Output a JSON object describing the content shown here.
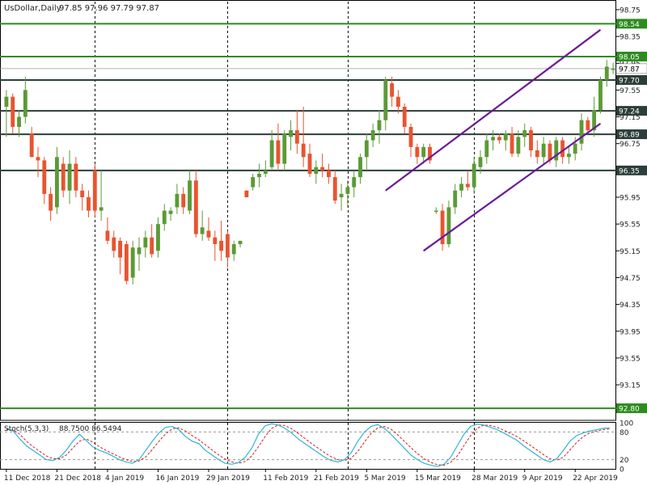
{
  "header": {
    "symbol_label": "UsDollar,Daily",
    "ohlc_text": "97.85 97.96 97.79 97.87"
  },
  "indicator": {
    "label": "Stoch(5,3,3)",
    "values_text": "88.7500 86.5494",
    "tick_labels": [
      "100",
      "80",
      "20",
      "0"
    ]
  },
  "colors": {
    "bull": "#5b9a36",
    "bear": "#e8542f",
    "support_resistance_line": "#2c3e3a",
    "green_level_line": "#2e8b20",
    "channel_line": "#6a1b9a",
    "stoch_main": "#32b4d2",
    "stoch_signal": "#d02020",
    "axis_text": "#222222",
    "grid": "#000000"
  },
  "chart_data": {
    "type": "candlestick",
    "title": "UsDollar,Daily",
    "ylim": [
      92.62,
      98.87
    ],
    "price_ticks": [
      "98.75",
      "98.35",
      "97.95",
      "97.55",
      "97.15",
      "96.75",
      "96.35",
      "95.95",
      "95.55",
      "95.15",
      "94.75",
      "94.35",
      "93.95",
      "93.55",
      "93.15"
    ],
    "x_ticks": [
      {
        "label": "11 Dec 2018",
        "index": 0
      },
      {
        "label": "21 Dec 2018",
        "index": 8
      },
      {
        "label": "4 Jan 2019",
        "index": 16
      },
      {
        "label": "16 Jan 2019",
        "index": 24
      },
      {
        "label": "29 Jan 2019",
        "index": 32
      },
      {
        "label": "11 Feb 2019",
        "index": 41
      },
      {
        "label": "21 Feb 2019",
        "index": 49
      },
      {
        "label": "5 Mar 2019",
        "index": 57
      },
      {
        "label": "15 Mar 2019",
        "index": 65
      },
      {
        "label": "28 Mar 2019",
        "index": 74
      },
      {
        "label": "9 Apr 2019",
        "index": 82
      },
      {
        "label": "22 Apr 2019",
        "index": 90
      }
    ],
    "vertical_dividers_at_index": [
      14,
      35,
      54,
      74
    ],
    "horizontal_levels": [
      {
        "value": 98.54,
        "label": "98.54",
        "color": "#2e8b20"
      },
      {
        "value": 98.05,
        "label": "98.05",
        "color": "#2e8b20"
      },
      {
        "value": 97.7,
        "label": "97.70",
        "color": "#2c3e3a"
      },
      {
        "value": 97.24,
        "label": "97.24",
        "color": "#2c3e3a"
      },
      {
        "value": 96.89,
        "label": "96.89",
        "color": "#2c3e3a"
      },
      {
        "value": 96.35,
        "label": "96.35",
        "color": "#2c3e3a"
      },
      {
        "value": 92.8,
        "label": "92.80",
        "color": "#2e8b20"
      }
    ],
    "current_price": {
      "value": 97.87,
      "label": "97.87"
    },
    "channel_lines": [
      {
        "from": {
          "index": 60,
          "price": 96.05
        },
        "to": {
          "index": 94,
          "price": 98.45
        }
      },
      {
        "from": {
          "index": 66,
          "price": 95.15
        },
        "to": {
          "index": 94,
          "price": 97.05
        }
      }
    ],
    "candles": [
      {
        "o": 97.3,
        "h": 97.55,
        "l": 96.85,
        "c": 97.45
      },
      {
        "o": 97.45,
        "h": 97.5,
        "l": 96.9,
        "c": 97.0
      },
      {
        "o": 97.0,
        "h": 97.25,
        "l": 96.85,
        "c": 97.15
      },
      {
        "o": 97.15,
        "h": 97.75,
        "l": 97.05,
        "c": 97.55
      },
      {
        "o": 96.9,
        "h": 97.0,
        "l": 96.55,
        "c": 96.55
      },
      {
        "o": 96.55,
        "h": 96.7,
        "l": 96.25,
        "c": 96.5
      },
      {
        "o": 96.5,
        "h": 96.55,
        "l": 95.85,
        "c": 96.0
      },
      {
        "o": 96.0,
        "h": 96.1,
        "l": 95.6,
        "c": 95.75
      },
      {
        "o": 95.8,
        "h": 96.7,
        "l": 95.7,
        "c": 96.55
      },
      {
        "o": 96.45,
        "h": 96.55,
        "l": 95.95,
        "c": 96.05
      },
      {
        "o": 96.05,
        "h": 96.65,
        "l": 95.85,
        "c": 96.45
      },
      {
        "o": 96.45,
        "h": 96.55,
        "l": 95.95,
        "c": 96.05
      },
      {
        "o": 96.05,
        "h": 96.15,
        "l": 95.75,
        "c": 95.95
      },
      {
        "o": 95.95,
        "h": 96.05,
        "l": 95.65,
        "c": 95.75
      },
      {
        "o": 96.35,
        "h": 96.45,
        "l": 95.65,
        "c": 95.75
      },
      {
        "o": 95.75,
        "h": 96.35,
        "l": 95.6,
        "c": 95.8
      },
      {
        "o": 95.45,
        "h": 95.65,
        "l": 95.25,
        "c": 95.3
      },
      {
        "o": 95.35,
        "h": 95.45,
        "l": 95.05,
        "c": 95.15
      },
      {
        "o": 95.3,
        "h": 95.35,
        "l": 94.8,
        "c": 95.05
      },
      {
        "o": 95.25,
        "h": 95.3,
        "l": 94.65,
        "c": 94.7
      },
      {
        "o": 94.75,
        "h": 95.3,
        "l": 94.65,
        "c": 95.2
      },
      {
        "o": 95.1,
        "h": 95.35,
        "l": 94.85,
        "c": 95.2
      },
      {
        "o": 95.2,
        "h": 95.45,
        "l": 95.05,
        "c": 95.35
      },
      {
        "o": 95.35,
        "h": 95.55,
        "l": 95.05,
        "c": 95.1
      },
      {
        "o": 95.15,
        "h": 95.65,
        "l": 95.05,
        "c": 95.55
      },
      {
        "o": 95.55,
        "h": 95.85,
        "l": 95.45,
        "c": 95.75
      },
      {
        "o": 95.7,
        "h": 95.8,
        "l": 95.6,
        "c": 95.75
      },
      {
        "o": 95.8,
        "h": 96.15,
        "l": 95.7,
        "c": 96.0
      },
      {
        "o": 96.0,
        "h": 96.1,
        "l": 95.7,
        "c": 95.8
      },
      {
        "o": 95.75,
        "h": 96.35,
        "l": 95.7,
        "c": 96.2
      },
      {
        "o": 96.2,
        "h": 96.35,
        "l": 95.35,
        "c": 95.4
      },
      {
        "o": 95.4,
        "h": 95.75,
        "l": 95.3,
        "c": 95.5
      },
      {
        "o": 95.45,
        "h": 95.65,
        "l": 95.3,
        "c": 95.35
      },
      {
        "o": 95.35,
        "h": 95.45,
        "l": 95.0,
        "c": 95.25
      },
      {
        "o": 95.3,
        "h": 95.6,
        "l": 95.0,
        "c": 95.15
      },
      {
        "o": 95.4,
        "h": 95.45,
        "l": 94.9,
        "c": 95.05
      },
      {
        "o": 95.1,
        "h": 95.3,
        "l": 95.0,
        "c": 95.25
      },
      {
        "o": 95.25,
        "h": 95.3,
        "l": 95.2,
        "c": 95.3
      },
      {
        "o": 96.05,
        "h": 96.05,
        "l": 95.95,
        "c": 95.95
      },
      {
        "o": 96.1,
        "h": 96.3,
        "l": 96.05,
        "c": 96.25
      },
      {
        "o": 96.25,
        "h": 96.45,
        "l": 96.1,
        "c": 96.3
      },
      {
        "o": 96.3,
        "h": 96.5,
        "l": 96.25,
        "c": 96.35
      },
      {
        "o": 96.4,
        "h": 96.95,
        "l": 96.35,
        "c": 96.8
      },
      {
        "o": 96.8,
        "h": 97.05,
        "l": 96.35,
        "c": 96.45
      },
      {
        "o": 96.45,
        "h": 96.95,
        "l": 96.35,
        "c": 96.9
      },
      {
        "o": 96.85,
        "h": 97.1,
        "l": 96.65,
        "c": 96.95
      },
      {
        "o": 96.95,
        "h": 97.25,
        "l": 96.6,
        "c": 96.75
      },
      {
        "o": 96.75,
        "h": 97.3,
        "l": 96.4,
        "c": 96.55
      },
      {
        "o": 96.6,
        "h": 96.75,
        "l": 96.25,
        "c": 96.3
      },
      {
        "o": 96.3,
        "h": 96.5,
        "l": 96.15,
        "c": 96.4
      },
      {
        "o": 96.4,
        "h": 96.6,
        "l": 96.25,
        "c": 96.35
      },
      {
        "o": 96.35,
        "h": 96.45,
        "l": 96.15,
        "c": 96.25
      },
      {
        "o": 96.25,
        "h": 96.35,
        "l": 95.85,
        "c": 95.9
      },
      {
        "o": 95.95,
        "h": 96.15,
        "l": 95.75,
        "c": 96.0
      },
      {
        "o": 96.0,
        "h": 96.2,
        "l": 95.8,
        "c": 96.1
      },
      {
        "o": 96.1,
        "h": 96.35,
        "l": 95.95,
        "c": 96.25
      },
      {
        "o": 96.25,
        "h": 96.6,
        "l": 96.15,
        "c": 96.55
      },
      {
        "o": 96.55,
        "h": 96.9,
        "l": 96.35,
        "c": 96.8
      },
      {
        "o": 96.8,
        "h": 97.05,
        "l": 96.7,
        "c": 96.95
      },
      {
        "o": 96.95,
        "h": 97.25,
        "l": 96.75,
        "c": 97.1
      },
      {
        "o": 97.1,
        "h": 97.75,
        "l": 96.95,
        "c": 97.7
      },
      {
        "o": 97.65,
        "h": 97.75,
        "l": 97.3,
        "c": 97.45
      },
      {
        "o": 97.45,
        "h": 97.55,
        "l": 97.2,
        "c": 97.3
      },
      {
        "o": 97.3,
        "h": 97.35,
        "l": 96.9,
        "c": 97.0
      },
      {
        "o": 97.0,
        "h": 97.05,
        "l": 96.55,
        "c": 96.7
      },
      {
        "o": 96.7,
        "h": 96.75,
        "l": 96.45,
        "c": 96.55
      },
      {
        "o": 96.55,
        "h": 96.75,
        "l": 96.45,
        "c": 96.7
      },
      {
        "o": 96.7,
        "h": 96.75,
        "l": 96.45,
        "c": 96.5
      },
      {
        "o": 95.75,
        "h": 95.8,
        "l": 95.7,
        "c": 95.75
      },
      {
        "o": 95.75,
        "h": 95.85,
        "l": 95.15,
        "c": 95.25
      },
      {
        "o": 95.25,
        "h": 95.9,
        "l": 95.2,
        "c": 95.8
      },
      {
        "o": 95.8,
        "h": 96.15,
        "l": 95.7,
        "c": 96.05
      },
      {
        "o": 96.05,
        "h": 96.25,
        "l": 95.95,
        "c": 96.15
      },
      {
        "o": 96.15,
        "h": 96.35,
        "l": 96.05,
        "c": 96.1
      },
      {
        "o": 96.1,
        "h": 96.55,
        "l": 96.0,
        "c": 96.45
      },
      {
        "o": 96.4,
        "h": 96.65,
        "l": 96.3,
        "c": 96.55
      },
      {
        "o": 96.55,
        "h": 96.9,
        "l": 96.45,
        "c": 96.8
      },
      {
        "o": 96.8,
        "h": 96.95,
        "l": 96.65,
        "c": 96.85
      },
      {
        "o": 96.85,
        "h": 96.9,
        "l": 96.75,
        "c": 96.8
      },
      {
        "o": 96.8,
        "h": 96.95,
        "l": 96.65,
        "c": 96.9
      },
      {
        "o": 96.9,
        "h": 97.0,
        "l": 96.55,
        "c": 96.6
      },
      {
        "o": 96.6,
        "h": 96.95,
        "l": 96.55,
        "c": 96.85
      },
      {
        "o": 96.85,
        "h": 97.05,
        "l": 96.7,
        "c": 96.95
      },
      {
        "o": 96.95,
        "h": 97.0,
        "l": 96.55,
        "c": 96.65
      },
      {
        "o": 96.65,
        "h": 96.8,
        "l": 96.45,
        "c": 96.55
      },
      {
        "o": 96.55,
        "h": 96.85,
        "l": 96.45,
        "c": 96.75
      },
      {
        "o": 96.75,
        "h": 96.8,
        "l": 96.45,
        "c": 96.5
      },
      {
        "o": 96.5,
        "h": 96.85,
        "l": 96.4,
        "c": 96.8
      },
      {
        "o": 96.8,
        "h": 96.85,
        "l": 96.45,
        "c": 96.55
      },
      {
        "o": 96.55,
        "h": 96.7,
        "l": 96.45,
        "c": 96.6
      },
      {
        "o": 96.6,
        "h": 96.85,
        "l": 96.5,
        "c": 96.75
      },
      {
        "o": 96.75,
        "h": 97.2,
        "l": 96.65,
        "c": 97.1
      },
      {
        "o": 97.1,
        "h": 97.15,
        "l": 96.9,
        "c": 96.95
      },
      {
        "o": 96.95,
        "h": 97.45,
        "l": 96.85,
        "c": 97.25
      },
      {
        "o": 97.25,
        "h": 97.75,
        "l": 97.2,
        "c": 97.7
      },
      {
        "o": 97.7,
        "h": 98.0,
        "l": 97.6,
        "c": 97.9
      },
      {
        "o": 97.85,
        "h": 97.96,
        "l": 97.79,
        "c": 97.87
      }
    ],
    "stochastic": {
      "label": "Stoch(5,3,3)",
      "main_value": 88.75,
      "signal_value": 86.5494,
      "ylim": [
        0,
        100
      ],
      "levels": [
        80,
        20
      ],
      "main": [
        88,
        82,
        65,
        50,
        40,
        30,
        20,
        18,
        25,
        40,
        60,
        75,
        62,
        48,
        40,
        35,
        28,
        20,
        15,
        12,
        20,
        40,
        60,
        78,
        90,
        92,
        85,
        70,
        60,
        55,
        40,
        30,
        20,
        12,
        10,
        14,
        25,
        45,
        75,
        93,
        98,
        95,
        88,
        78,
        65,
        55,
        45,
        35,
        25,
        18,
        15,
        20,
        35,
        60,
        80,
        92,
        96,
        88,
        75,
        60,
        45,
        30,
        20,
        12,
        8,
        5,
        10,
        25,
        50,
        75,
        92,
        97,
        95,
        90,
        85,
        78,
        70,
        62,
        50,
        40,
        30,
        20,
        15,
        22,
        40,
        60,
        72,
        78,
        82,
        85,
        88,
        88.75
      ],
      "signal": [
        85,
        84,
        75,
        60,
        48,
        38,
        28,
        22,
        22,
        30,
        45,
        60,
        65,
        58,
        48,
        40,
        33,
        26,
        20,
        16,
        17,
        26,
        42,
        60,
        76,
        87,
        89,
        82,
        72,
        63,
        52,
        41,
        30,
        21,
        15,
        12,
        16,
        28,
        48,
        70,
        88,
        95,
        94,
        87,
        77,
        66,
        55,
        45,
        35,
        26,
        20,
        18,
        23,
        38,
        58,
        77,
        89,
        92,
        86,
        74,
        60,
        46,
        33,
        22,
        14,
        9,
        8,
        14,
        28,
        50,
        72,
        88,
        95,
        94,
        90,
        84,
        77,
        70,
        61,
        51,
        41,
        31,
        22,
        19,
        25,
        41,
        57,
        70,
        78,
        82,
        85,
        86.5494
      ]
    }
  }
}
